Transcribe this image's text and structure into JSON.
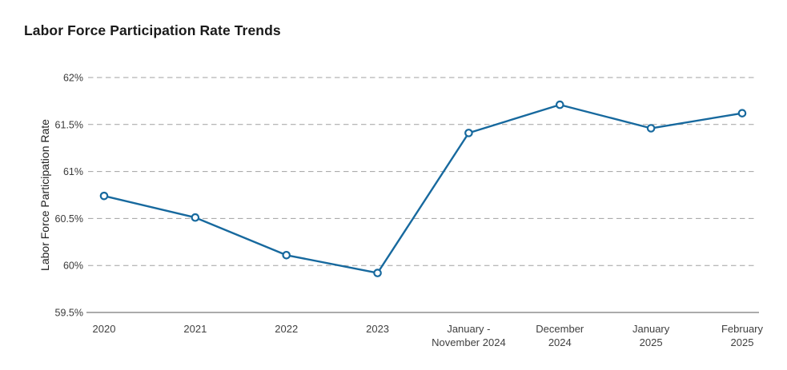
{
  "page": {
    "title": "Labor Force Participation Rate Trends"
  },
  "chart_data": {
    "type": "line",
    "title": "Labor Force Participation Rate Trends",
    "categories": [
      [
        "2020"
      ],
      [
        "2021"
      ],
      [
        "2022"
      ],
      [
        "2023"
      ],
      [
        "January -",
        "November 2024"
      ],
      [
        "December",
        "2024"
      ],
      [
        "January",
        "2025"
      ],
      [
        "February",
        "2025"
      ]
    ],
    "values": [
      60.74,
      60.51,
      60.11,
      59.92,
      61.41,
      61.71,
      61.46,
      61.62
    ],
    "series_name": "Labor Force Participation Rate",
    "xlabel": "",
    "ylabel": "Labor Force Participation Rate",
    "ylim": [
      59.5,
      62
    ],
    "yticks": [
      {
        "value": 62,
        "label": "62%"
      },
      {
        "value": 61.5,
        "label": "61.5%"
      },
      {
        "value": 61,
        "label": "61%"
      },
      {
        "value": 60.5,
        "label": "60.5%"
      },
      {
        "value": 60,
        "label": "60%"
      },
      {
        "value": 59.5,
        "label": "59.5%"
      }
    ],
    "grid": "horizontal-dashed",
    "legend": "none",
    "marker": "open-circle",
    "colors": {
      "line": "#17699e",
      "marker_fill": "#ffffff",
      "gridline": "#a1a1a1",
      "axis_line": "#8f8f8f",
      "y_tick_text": "#3a3a3a",
      "x_tick_text": "#404040",
      "title_text": "#1a1a1a"
    }
  }
}
